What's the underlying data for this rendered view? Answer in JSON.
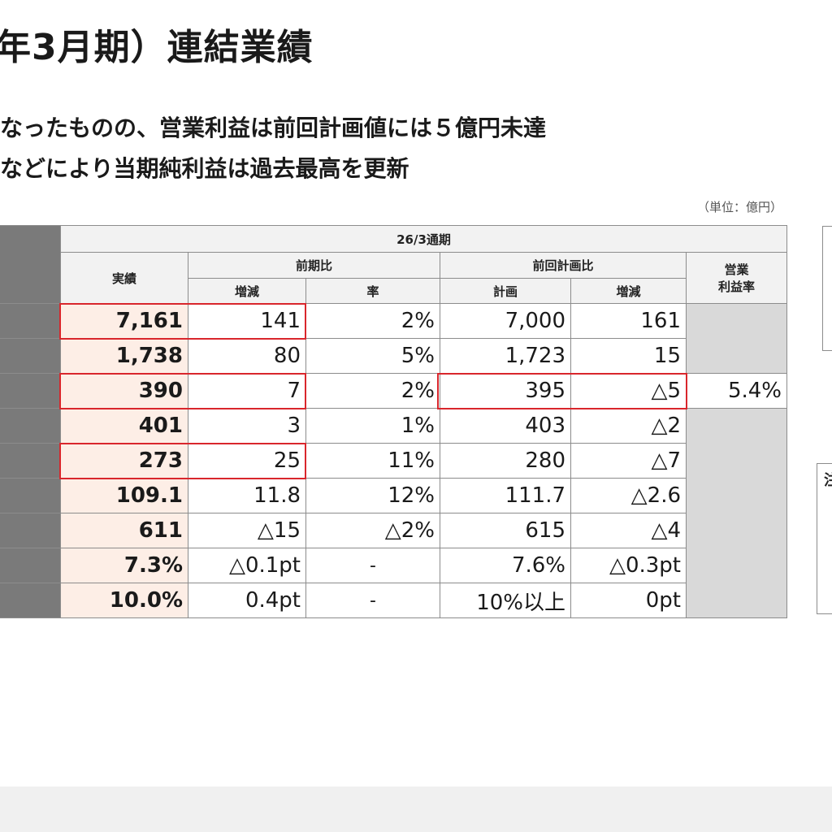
{
  "title": "年3月期）連結業績",
  "subtitle_line1": "なったものの、営業利益は前回計画値には５億円未達",
  "subtitle_line2": "などにより当期純利益は過去最高を更新",
  "unit_note": "（単位：億円）",
  "table": {
    "period_header": "26/3通期",
    "col_actual": "実績",
    "group_prev": "前期比",
    "col_change": "増減",
    "col_rate": "率",
    "group_plan": "前回計画比",
    "col_plan": "計画",
    "col_plan_change": "増減",
    "col_margin": "営業利益率",
    "margin_value": "5.4%",
    "rows": [
      {
        "actual": "7,161",
        "change": "141",
        "rate": "2%",
        "plan": "7,000",
        "plan_change": "161"
      },
      {
        "actual": "1,738",
        "change": "80",
        "rate": "5%",
        "plan": "1,723",
        "plan_change": "15"
      },
      {
        "actual": "390",
        "change": "7",
        "rate": "2%",
        "plan": "395",
        "plan_change": "△5"
      },
      {
        "actual": "401",
        "change": "3",
        "rate": "1%",
        "plan": "403",
        "plan_change": "△2"
      },
      {
        "actual": "273",
        "change": "25",
        "rate": "11%",
        "plan": "280",
        "plan_change": "△7"
      },
      {
        "actual": "109.1",
        "change": "11.8",
        "rate": "12%",
        "plan": "111.7",
        "plan_change": "△2.6"
      },
      {
        "actual": "611",
        "change": "△15",
        "rate": "△2%",
        "plan": "615",
        "plan_change": "△4"
      },
      {
        "actual": "7.3%",
        "change": "△0.1pt",
        "rate": "-",
        "plan": "7.6%",
        "plan_change": "△0.3pt"
      },
      {
        "actual": "10.0%",
        "change": "0.4pt",
        "rate": "-",
        "plan": "10%以上",
        "plan_change": "0pt"
      }
    ]
  },
  "side_panel_char": "注"
}
